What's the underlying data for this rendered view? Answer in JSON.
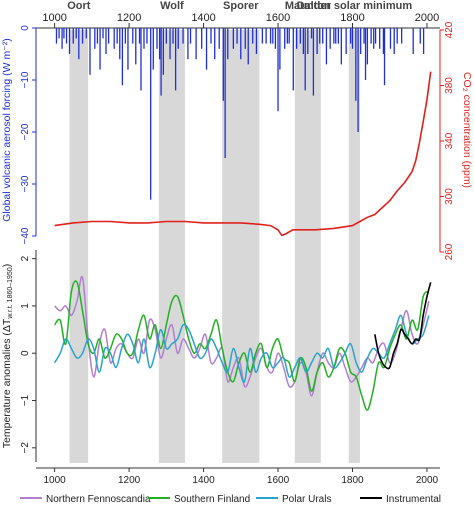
{
  "colors": {
    "aerosol": "#1f2fd6",
    "co2": "#e0201b",
    "northern_fennoscandia": "#b07fd0",
    "southern_finland": "#22b022",
    "polar_urals": "#2aa3c8",
    "instrumental": "#000000",
    "solar_shading": "#d8d8d8"
  },
  "chart_data": [
    {
      "type": "bar",
      "panel": "top",
      "xlabel": "",
      "ylabel_left": "Global volcanic aerosol forcing (W m⁻²)",
      "ylabel_right": "CO₂ concentration (ppm)",
      "x_ticks_top": [
        1000,
        1200,
        1400,
        1600,
        1800,
        2000
      ],
      "xlim": [
        950,
        2035
      ],
      "ylim_left": [
        -40,
        0
      ],
      "y_ticks_left": [
        "0",
        "−10",
        "−20",
        "−30",
        "−40"
      ],
      "y_tick_values_left": [
        0,
        -10,
        -20,
        -30,
        -40
      ],
      "ylim_right": [
        260,
        420
      ],
      "y_ticks_right": [
        "420",
        "380",
        "340",
        "300",
        "260"
      ],
      "y_tick_values_right": [
        420,
        380,
        340,
        300,
        260
      ],
      "solar_minima": [
        {
          "name": "Oort",
          "start": 1040,
          "end": 1090
        },
        {
          "name": "Wolf",
          "start": 1280,
          "end": 1350
        },
        {
          "name": "Sporer",
          "start": 1450,
          "end": 1550
        },
        {
          "name": "Maunder",
          "start": 1645,
          "end": 1715
        },
        {
          "name": "Dalton solar minimum",
          "start": 1790,
          "end": 1820
        }
      ],
      "volcanic_aerosol": {
        "years": [
          1005,
          1012,
          1020,
          1025,
          1032,
          1040,
          1050,
          1058,
          1065,
          1075,
          1085,
          1095,
          1108,
          1115,
          1122,
          1130,
          1138,
          1145,
          1160,
          1168,
          1175,
          1182,
          1190,
          1197,
          1210,
          1218,
          1228,
          1232,
          1240,
          1248,
          1258,
          1265,
          1275,
          1282,
          1286,
          1292,
          1300,
          1310,
          1318,
          1325,
          1332,
          1345,
          1358,
          1365,
          1380,
          1395,
          1408,
          1420,
          1430,
          1442,
          1453,
          1458,
          1465,
          1480,
          1490,
          1500,
          1512,
          1520,
          1532,
          1542,
          1558,
          1568,
          1580,
          1586,
          1593,
          1600,
          1605,
          1618,
          1625,
          1630,
          1641,
          1650,
          1660,
          1668,
          1673,
          1680,
          1690,
          1695,
          1705,
          1712,
          1720,
          1730,
          1740,
          1750,
          1755,
          1762,
          1770,
          1783,
          1795,
          1800,
          1809,
          1815,
          1822,
          1831,
          1835,
          1840,
          1850,
          1857,
          1862,
          1873,
          1883,
          1886,
          1902,
          1912,
          1920,
          1932,
          1963,
          1982,
          1991
        ],
        "values": [
          -3,
          -2,
          -4,
          -2,
          -3,
          -5,
          -3,
          -2,
          -6,
          -3,
          -2,
          -9,
          -4,
          -3,
          -8,
          -2,
          -5,
          -3,
          -4,
          -3,
          -6,
          -11,
          -3,
          -8,
          -3,
          -7,
          -3,
          -12,
          -4,
          -3,
          -33,
          -8,
          -4,
          -6,
          -13,
          -9,
          -3,
          -6,
          -3,
          -12,
          -4,
          -3,
          -6,
          -3,
          -6,
          -4,
          -8,
          -3,
          -6,
          -4,
          -14,
          -25,
          -6,
          -4,
          -3,
          -6,
          -4,
          -7,
          -3,
          -5,
          -3,
          -3,
          -3,
          -3,
          -4,
          -16,
          -8,
          -4,
          -3,
          -3,
          -12,
          -4,
          -3,
          -5,
          -12,
          -5,
          -2,
          -13,
          -5,
          -3,
          -3,
          -7,
          -4,
          -3,
          -3,
          -3,
          -7,
          -5,
          -3,
          -4,
          -14,
          -20,
          -5,
          -3,
          -10,
          -7,
          -3,
          -4,
          -3,
          -4,
          -5,
          -11,
          -4,
          -5,
          -3,
          -3,
          -5,
          -3,
          -5
        ]
      },
      "co2": {
        "years": [
          1000,
          1050,
          1100,
          1150,
          1200,
          1250,
          1300,
          1350,
          1400,
          1450,
          1500,
          1550,
          1580,
          1600,
          1610,
          1620,
          1640,
          1700,
          1750,
          1800,
          1820,
          1840,
          1860,
          1880,
          1900,
          1920,
          1940,
          1960,
          1970,
          1980,
          1990,
          2000,
          2010
        ],
        "ppm": [
          279,
          281,
          282,
          282,
          281,
          281,
          282,
          282,
          281,
          281,
          281,
          280,
          279,
          276,
          272,
          273,
          276,
          276,
          277,
          279,
          282,
          285,
          287,
          292,
          297,
          304,
          310,
          318,
          326,
          339,
          354,
          370,
          390
        ]
      }
    },
    {
      "type": "line",
      "panel": "bottom",
      "xlabel": "",
      "ylabel": "Temperature anomalies (ΔT",
      "ylabel_sub": "w.r.t. 1860–1950",
      "ylabel_end": ")",
      "xlim": [
        950,
        2035
      ],
      "x_ticks": [
        1000,
        1200,
        1400,
        1600,
        1800,
        2000
      ],
      "ylim": [
        -2.3,
        2.5
      ],
      "y_ticks": [
        "2",
        "1",
        "0",
        "−1",
        "−2"
      ],
      "y_tick_values": [
        2,
        1,
        0,
        -1,
        -2
      ],
      "legend_position": "bottom",
      "series": [
        {
          "name": "Northern Fennoscandia",
          "color_key": "northern_fennoscandia",
          "years": [
            1000,
            1015,
            1030,
            1045,
            1060,
            1075,
            1090,
            1105,
            1120,
            1135,
            1150,
            1165,
            1180,
            1195,
            1210,
            1225,
            1240,
            1255,
            1270,
            1285,
            1300,
            1315,
            1330,
            1345,
            1360,
            1375,
            1390,
            1405,
            1420,
            1435,
            1450,
            1465,
            1480,
            1495,
            1510,
            1525,
            1540,
            1555,
            1570,
            1585,
            1600,
            1615,
            1630,
            1645,
            1660,
            1675,
            1690,
            1705,
            1720,
            1735,
            1750,
            1765,
            1780,
            1795,
            1810,
            1825,
            1840,
            1855,
            1870,
            1885,
            1900,
            1915,
            1930,
            1945,
            1960,
            1975,
            1990,
            2005
          ],
          "values": [
            1.0,
            0.9,
            1.0,
            0.8,
            1.1,
            1.6,
            0.3,
            -0.5,
            0.2,
            0.5,
            -0.2,
            0.1,
            0.2,
            0.0,
            -0.1,
            0.3,
            0.0,
            0.7,
            0.5,
            -0.1,
            0.3,
            0.6,
            0.0,
            0.3,
            0.1,
            -0.1,
            0.1,
            0.4,
            -0.2,
            -0.1,
            0.1,
            -0.6,
            -0.3,
            -0.1,
            -0.7,
            -0.5,
            -0.1,
            0.1,
            -0.3,
            -0.4,
            0.0,
            -0.3,
            -0.7,
            -0.6,
            -0.2,
            -0.4,
            -0.9,
            -0.4,
            0.0,
            -0.2,
            -0.3,
            0.0,
            -0.3,
            -0.6,
            -0.5,
            -0.3,
            -0.1,
            -0.2,
            0.1,
            0.2,
            -0.2,
            0.0,
            0.5,
            0.9,
            0.4,
            0.2,
            0.6,
            1.1
          ]
        },
        {
          "name": "Southern Finland",
          "color_key": "southern_finland",
          "years": [
            1000,
            1015,
            1030,
            1045,
            1060,
            1075,
            1090,
            1105,
            1120,
            1135,
            1150,
            1165,
            1180,
            1195,
            1210,
            1225,
            1240,
            1255,
            1270,
            1285,
            1300,
            1315,
            1330,
            1345,
            1360,
            1375,
            1390,
            1405,
            1420,
            1435,
            1450,
            1465,
            1480,
            1495,
            1510,
            1525,
            1540,
            1555,
            1570,
            1585,
            1600,
            1615,
            1630,
            1645,
            1660,
            1675,
            1690,
            1705,
            1720,
            1735,
            1750,
            1765,
            1780,
            1795,
            1810,
            1825,
            1840,
            1855,
            1870,
            1885,
            1900,
            1915,
            1930,
            1945,
            1960,
            1975,
            1990,
            2005
          ],
          "values": [
            0.6,
            0.7,
            0.2,
            1.3,
            1.5,
            0.9,
            0.2,
            0.0,
            0.3,
            -0.1,
            0.1,
            0.4,
            0.3,
            0.0,
            0.0,
            0.5,
            0.8,
            0.3,
            0.6,
            0.1,
            0.6,
            1.1,
            1.2,
            0.8,
            0.3,
            0.0,
            0.2,
            0.1,
            0.4,
            0.7,
            0.1,
            -0.4,
            -0.6,
            -0.2,
            0.0,
            -0.4,
            0.0,
            0.2,
            -0.3,
            0.1,
            0.3,
            -0.1,
            -0.2,
            -0.6,
            -0.1,
            -0.3,
            -0.8,
            -0.4,
            -0.2,
            -0.5,
            -0.3,
            0.1,
            0.0,
            -0.4,
            -0.5,
            -0.9,
            -1.2,
            -0.8,
            -0.2,
            -0.3,
            0.1,
            0.4,
            0.6,
            0.3,
            0.7,
            0.5,
            1.2,
            1.3
          ]
        },
        {
          "name": "Polar Urals",
          "color_key": "polar_urals",
          "years": [
            1000,
            1015,
            1030,
            1045,
            1060,
            1075,
            1090,
            1105,
            1120,
            1135,
            1150,
            1165,
            1180,
            1195,
            1210,
            1225,
            1240,
            1255,
            1270,
            1285,
            1300,
            1315,
            1330,
            1345,
            1360,
            1375,
            1390,
            1405,
            1420,
            1435,
            1450,
            1465,
            1480,
            1495,
            1510,
            1525,
            1540,
            1555,
            1570,
            1585,
            1600,
            1615,
            1630,
            1645,
            1660,
            1675,
            1690,
            1705,
            1720,
            1735,
            1750,
            1765,
            1780,
            1795,
            1810,
            1825,
            1840,
            1855,
            1870,
            1885,
            1900,
            1915,
            1930,
            1945,
            1960,
            1975,
            1990,
            2005
          ],
          "values": [
            -0.2,
            0.0,
            0.3,
            0.1,
            -0.1,
            0.0,
            0.3,
            0.1,
            -0.4,
            0.1,
            0.0,
            -0.3,
            0.1,
            0.4,
            0.2,
            -0.2,
            0.3,
            -0.3,
            0.0,
            0.5,
            0.1,
            0.2,
            0.3,
            0.6,
            0.5,
            0.2,
            -0.1,
            0.0,
            0.3,
            0.1,
            -0.2,
            -0.4,
            0.1,
            -0.3,
            -0.6,
            0.1,
            -0.4,
            -0.1,
            0.0,
            -0.3,
            -0.2,
            -0.1,
            -0.5,
            -0.3,
            -0.1,
            -0.4,
            -0.2,
            0.0,
            -0.1,
            0.1,
            -0.3,
            -0.2,
            0.0,
            0.2,
            -0.2,
            -0.4,
            -0.1,
            0.1,
            0.0,
            -0.1,
            0.2,
            0.5,
            0.8,
            0.4,
            0.2,
            0.3,
            0.4,
            0.8
          ]
        },
        {
          "name": "Instrumental",
          "color_key": "instrumental",
          "years": [
            1860,
            1870,
            1880,
            1890,
            1900,
            1910,
            1920,
            1930,
            1940,
            1950,
            1960,
            1970,
            1980,
            1990,
            2000,
            2010
          ],
          "values": [
            0.4,
            0.0,
            -0.2,
            -0.3,
            -0.3,
            0.0,
            0.2,
            0.5,
            0.4,
            0.3,
            0.2,
            0.3,
            0.3,
            0.8,
            1.2,
            1.5
          ]
        }
      ]
    }
  ]
}
